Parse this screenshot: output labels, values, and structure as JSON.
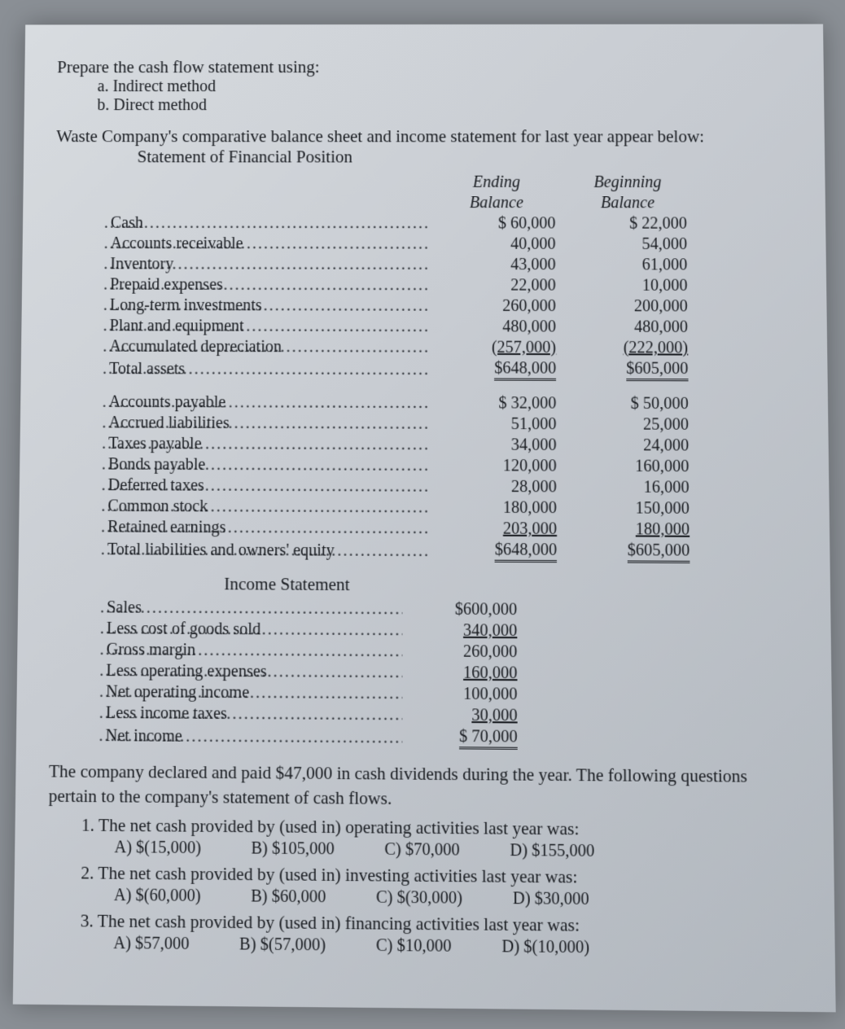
{
  "intro": {
    "lead": "Prepare the cash flow statement using:",
    "a": "a.  Indirect method",
    "b": "b.  Direct method"
  },
  "stmt": {
    "title": "Waste Company's comparative balance sheet and income statement for last year appear below:",
    "sub": "Statement of Financial Position"
  },
  "headers": {
    "ending1": "Ending",
    "ending2": "Balance",
    "begin1": "Beginning",
    "begin2": "Balance"
  },
  "bs_assets": [
    {
      "label": "Cash",
      "end": "$ 60,000",
      "begin": "$ 22,000"
    },
    {
      "label": "Accounts receivable",
      "end": "40,000",
      "begin": "54,000"
    },
    {
      "label": "Inventory",
      "end": "43,000",
      "begin": "61,000"
    },
    {
      "label": "Prepaid expenses",
      "end": "22,000",
      "begin": "10,000"
    },
    {
      "label": "Long-term investments",
      "end": "260,000",
      "begin": "200,000"
    },
    {
      "label": "Plant and equipment",
      "end": "480,000",
      "begin": "480,000"
    },
    {
      "label": "Accumulated depreciation",
      "end": "(257,000)",
      "begin": "(222,000)",
      "under": true
    },
    {
      "label": "Total assets",
      "end": "$648,000",
      "begin": "$605,000",
      "dbl": true
    }
  ],
  "bs_liab": [
    {
      "label": "Accounts payable",
      "end": "$ 32,000",
      "begin": "$ 50,000"
    },
    {
      "label": "Accrued liabilities",
      "end": "51,000",
      "begin": "25,000"
    },
    {
      "label": "Taxes payable",
      "end": "34,000",
      "begin": "24,000"
    },
    {
      "label": "Bonds payable",
      "end": "120,000",
      "begin": "160,000"
    },
    {
      "label": "Deferred taxes",
      "end": "28,000",
      "begin": "16,000"
    },
    {
      "label": "Common stock",
      "end": "180,000",
      "begin": "150,000"
    },
    {
      "label": "Retained earnings",
      "end": "203,000",
      "begin": "180,000",
      "under": true
    },
    {
      "label": "Total liabilities and owners' equity",
      "end": "$648,000",
      "begin": "$605,000",
      "dbl": true
    }
  ],
  "is_title": "Income Statement",
  "is_rows": [
    {
      "label": "Sales",
      "val": "$600,000"
    },
    {
      "label": "Less cost of goods sold",
      "val": "340,000",
      "under": true
    },
    {
      "label": "Gross margin",
      "val": "260,000"
    },
    {
      "label": "Less operating expenses",
      "val": "160,000",
      "under": true
    },
    {
      "label": "Net operating income",
      "val": "100,000"
    },
    {
      "label": "Less income taxes",
      "val": "30,000",
      "under": true
    },
    {
      "label": "Net income",
      "val": "$ 70,000",
      "dbl": true
    }
  ],
  "note1": "The company declared and paid $47,000 in cash dividends during the year. The following questions",
  "note2": "pertain to the company's statement of cash flows.",
  "q1": {
    "text": "1. The net cash provided by (used in) operating activities last year was:",
    "a": "A)  $(15,000)",
    "b": "B)     $105,000",
    "c": "C)     $70,000",
    "d": "D)     $155,000"
  },
  "q2": {
    "text": "2. The net cash provided by (used in) investing activities last year was:",
    "a": "A)  $(60,000)",
    "b": "B)     $60,000",
    "c": "C)     $(30,000)",
    "d": "D)     $30,000"
  },
  "q3": {
    "text": "3. The net cash provided by (used in) financing activities last year was:",
    "a": "A)  $57,000",
    "b": "B)     $(57,000)",
    "c": "C)     $10,000",
    "d": "D)     $(10,000)"
  }
}
